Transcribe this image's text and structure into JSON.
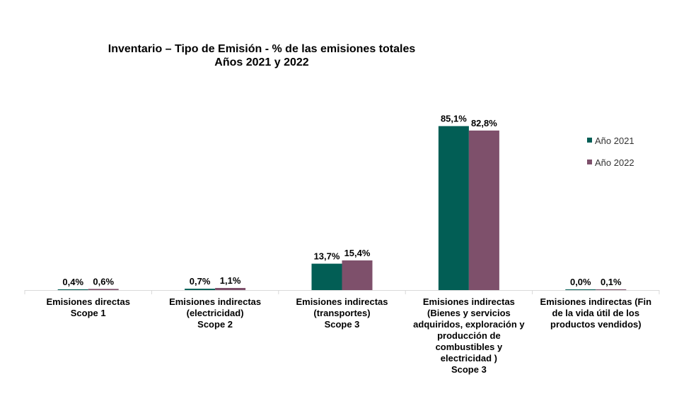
{
  "chart_data": {
    "type": "bar",
    "title": "Inventario – Tipo de Emisión - % de las emisiones totales",
    "subtitle": "Años 2021 y 2022",
    "categories": [
      [
        "Emisiones directas",
        "Scope 1"
      ],
      [
        "Emisiones indirectas",
        "(electricidad)",
        "Scope 2"
      ],
      [
        "Emisiones indirectas",
        "(transportes)",
        "Scope 3"
      ],
      [
        "Emisiones indirectas",
        "(Bienes y servicios",
        "adquiridos, exploración y",
        "producción de",
        "combustibles y",
        "electricidad )",
        "Scope 3"
      ],
      [
        "Emisiones indirectas (Fin",
        "de la vida útil de los",
        "productos vendidos)"
      ]
    ],
    "series": [
      {
        "name": "Año 2021",
        "color": "#025E55",
        "values": [
          0.4,
          0.7,
          13.7,
          85.1,
          0.0
        ],
        "labels": [
          "0,4%",
          "0,7%",
          "13,7%",
          "85,1%",
          "0,0%"
        ]
      },
      {
        "name": "Año 2022",
        "color": "#7E506B",
        "values": [
          0.6,
          1.1,
          15.4,
          82.8,
          0.1
        ],
        "labels": [
          "0,6%",
          "1,1%",
          "15,4%",
          "82,8%",
          "0,1%"
        ]
      }
    ],
    "xlabel": "",
    "ylabel": "",
    "ylim": [
      0,
      100
    ],
    "grid": false,
    "legend": "right"
  }
}
